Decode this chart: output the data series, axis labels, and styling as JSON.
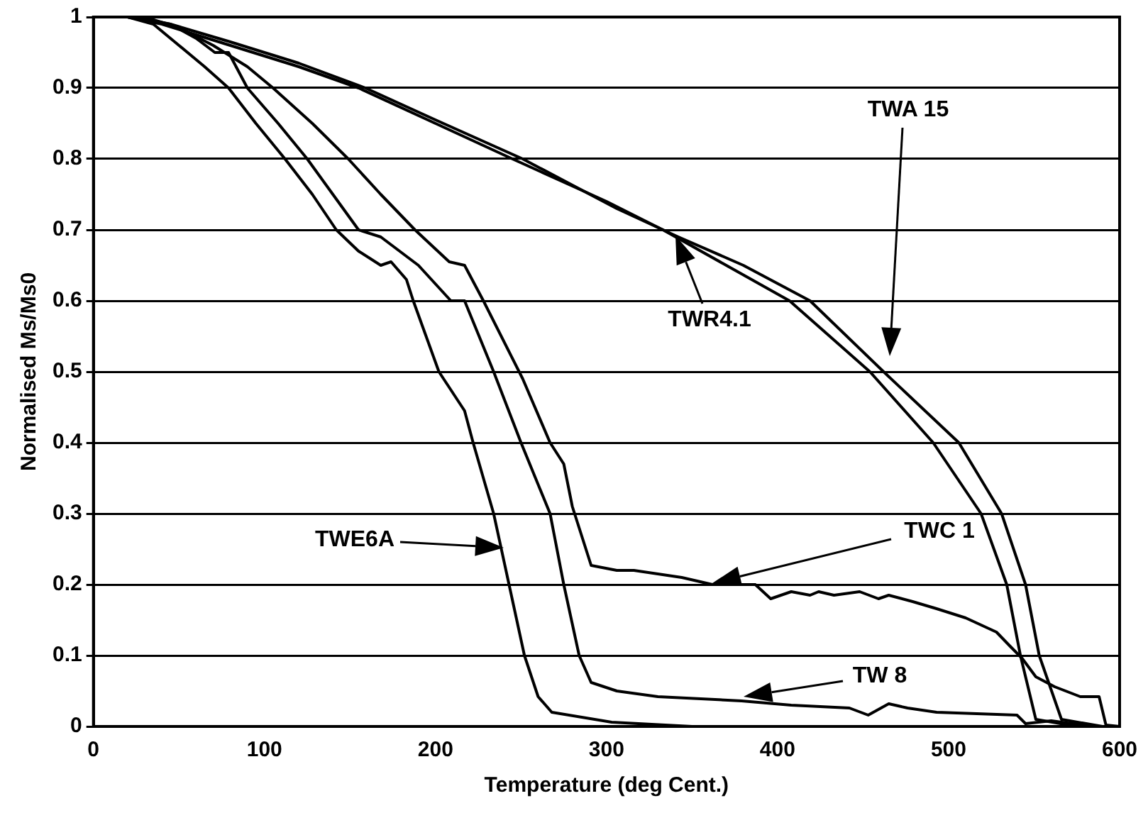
{
  "chart_data": {
    "type": "line",
    "xlabel": "Temperature (deg Cent.)",
    "ylabel": "Normalised Ms/Ms0",
    "xlim": [
      0,
      600
    ],
    "xticks": [
      0,
      100,
      200,
      300,
      400,
      500,
      600
    ],
    "ylim": [
      0,
      1
    ],
    "yticks": [
      0,
      0.1,
      0.2,
      0.3,
      0.4,
      0.5,
      0.6,
      0.7,
      0.8,
      0.9,
      1
    ],
    "grid": "y",
    "legend": false,
    "marker": "none",
    "line_style": "solid",
    "series": [
      {
        "color": "#000000",
        "x": [
          20,
          35,
          50,
          65,
          79,
          95,
          112,
          128,
          142,
          155,
          168,
          174,
          183,
          187,
          202,
          217,
          222,
          234,
          243,
          252,
          260,
          268,
          303,
          350,
          600
        ],
        "values": [
          1,
          0.99,
          0.96,
          0.93,
          0.9,
          0.85,
          0.8,
          0.75,
          0.7,
          0.67,
          0.65,
          0.655,
          0.63,
          0.6,
          0.5,
          0.445,
          0.4,
          0.3,
          0.2,
          0.1,
          0.042,
          0.02,
          0.006,
          0,
          0
        ]
      },
      {
        "color": "#000000",
        "x": [
          25,
          45,
          60,
          71,
          79,
          90,
          108,
          125,
          140,
          155,
          168,
          190,
          209,
          217,
          234,
          250,
          267,
          275,
          284,
          291,
          306,
          330,
          379,
          408,
          442,
          453,
          465,
          476,
          493,
          540,
          545,
          560,
          585,
          600
        ],
        "values": [
          1,
          0.99,
          0.97,
          0.95,
          0.95,
          0.9,
          0.85,
          0.8,
          0.75,
          0.7,
          0.69,
          0.65,
          0.6,
          0.6,
          0.5,
          0.4,
          0.3,
          0.2,
          0.1,
          0.062,
          0.05,
          0.042,
          0.036,
          0.03,
          0.026,
          0.016,
          0.032,
          0.026,
          0.02,
          0.016,
          0.004,
          0.008,
          0,
          0
        ]
      },
      {
        "color": "#000000",
        "x": [
          30,
          50,
          70,
          90,
          105,
          128,
          149,
          168,
          188,
          208,
          217,
          228,
          251,
          267,
          275,
          280,
          291,
          306,
          316,
          344,
          362,
          387,
          396,
          408,
          419,
          424,
          433,
          448,
          459,
          465,
          479,
          493,
          510,
          528,
          536,
          543,
          551,
          562,
          577,
          588,
          592,
          600
        ],
        "values": [
          1,
          0.985,
          0.96,
          0.93,
          0.9,
          0.85,
          0.8,
          0.75,
          0.7,
          0.655,
          0.65,
          0.6,
          0.49,
          0.4,
          0.37,
          0.31,
          0.227,
          0.22,
          0.22,
          0.21,
          0.2,
          0.2,
          0.18,
          0.19,
          0.185,
          0.19,
          0.185,
          0.19,
          0.18,
          0.185,
          0.176,
          0.166,
          0.153,
          0.133,
          0.113,
          0.096,
          0.07,
          0.056,
          0.042,
          0.042,
          0.002,
          0
        ]
      },
      {
        "color": "#000000",
        "x": [
          20,
          40,
          80,
          120,
          155,
          200,
          245,
          300,
          333,
          370,
          407,
          454,
          491,
          519,
          534,
          542,
          551,
          575,
          600
        ],
        "values": [
          1,
          0.99,
          0.96,
          0.93,
          0.9,
          0.85,
          0.8,
          0.74,
          0.7,
          0.65,
          0.6,
          0.5,
          0.4,
          0.3,
          0.2,
          0.1,
          0.01,
          0,
          0
        ]
      },
      {
        "color": "#000000",
        "x": [
          20,
          45,
          80,
          120,
          159,
          200,
          251,
          306,
          342,
          380,
          419,
          462,
          506,
          531,
          545,
          553,
          566,
          590,
          600
        ],
        "values": [
          1,
          0.99,
          0.965,
          0.935,
          0.9,
          0.855,
          0.8,
          0.73,
          0.69,
          0.65,
          0.6,
          0.5,
          0.4,
          0.3,
          0.2,
          0.1,
          0.01,
          0,
          0
        ]
      }
    ],
    "annotations": [
      "TWE6A",
      "TWC 1",
      "TW 8",
      "TWR4.1",
      "TWA 15"
    ]
  }
}
